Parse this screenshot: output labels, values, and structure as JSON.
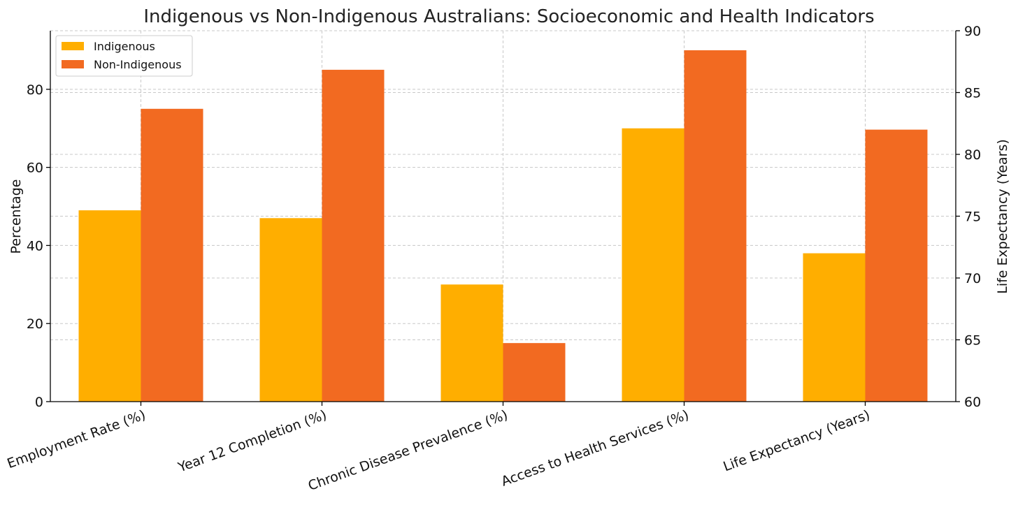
{
  "chart_data": {
    "type": "bar",
    "title": "Indigenous vs Non-Indigenous Australians: Socioeconomic and Health Indicators",
    "categories": [
      "Employment Rate (%)",
      "Year 12 Completion (%)",
      "Chronic Disease Prevalence (%)",
      "Access to Health Services (%)",
      "Life Expectancy (Years)"
    ],
    "ylabel": "Percentage",
    "ylim": [
      0,
      95
    ],
    "yticks": [
      0,
      20,
      40,
      60,
      80
    ],
    "y2label": "Life Expectancy (Years)",
    "y2lim": [
      60,
      90
    ],
    "y2ticks": [
      60,
      65,
      70,
      75,
      80,
      85,
      90
    ],
    "grid": true,
    "legend_position": "top-left",
    "series": [
      {
        "name": "Indigenous",
        "color": "#FFAE00",
        "values": [
          49,
          47,
          30,
          70,
          72
        ],
        "axis": [
          "left",
          "left",
          "left",
          "left",
          "right"
        ]
      },
      {
        "name": "Non-Indigenous",
        "color": "#F26A21",
        "values": [
          75,
          85,
          15,
          90,
          82
        ],
        "axis": [
          "left",
          "left",
          "left",
          "left",
          "right"
        ]
      }
    ]
  }
}
